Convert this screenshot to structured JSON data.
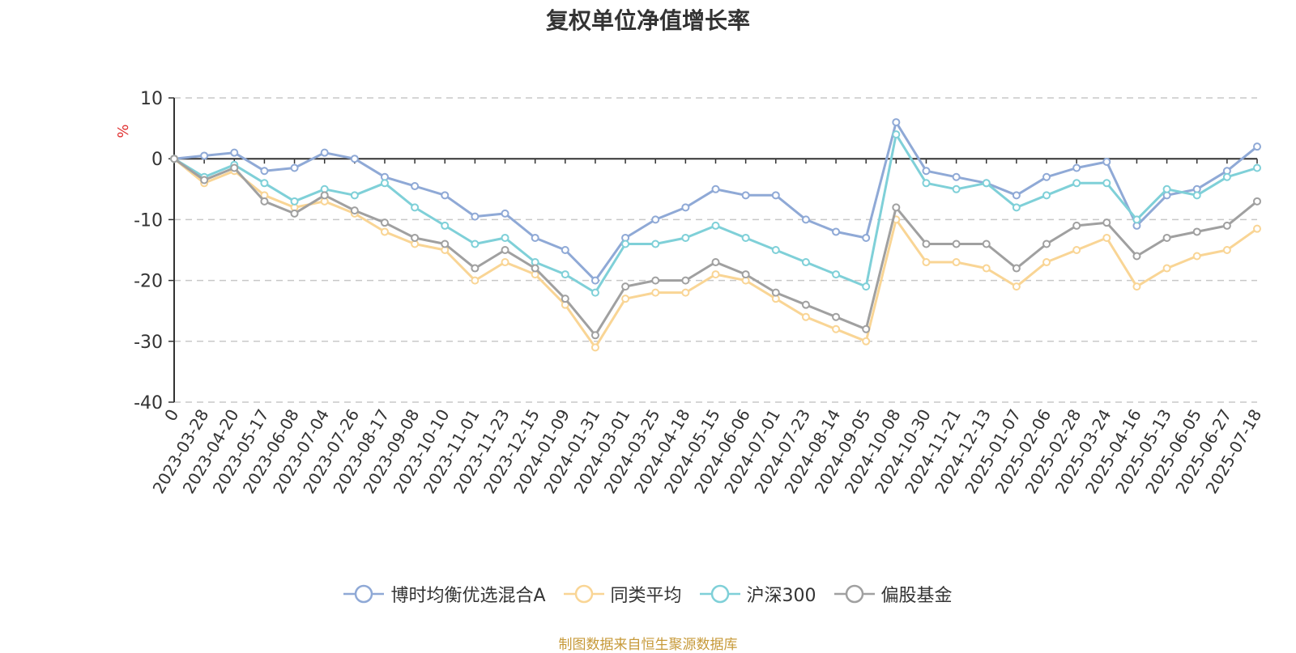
{
  "chart_data": {
    "type": "line",
    "title": "复权单位净值增长率",
    "ylabel": "%",
    "ylim": [
      -40,
      10
    ],
    "yticks": [
      "10",
      "0",
      "-10",
      "-20",
      "-30",
      "-40"
    ],
    "grid": true,
    "legend_position": "bottom",
    "x_ticks": [
      "0",
      "2023-03-28",
      "2023-04-20",
      "2023-05-17",
      "2023-06-08",
      "2023-07-04",
      "2023-07-26",
      "2023-08-17",
      "2023-09-08",
      "2023-10-10",
      "2023-11-01",
      "2023-11-23",
      "2023-12-15",
      "2024-01-09",
      "2024-01-31",
      "2024-03-01",
      "2024-03-25",
      "2024-04-18",
      "2024-05-15",
      "2024-06-06",
      "2024-07-01",
      "2024-07-23",
      "2024-08-14",
      "2024-09-05",
      "2024-10-08",
      "2024-10-30",
      "2024-11-21",
      "2024-12-13",
      "2025-01-07",
      "2025-02-06",
      "2025-02-28",
      "2025-03-24",
      "2025-04-16",
      "2025-05-13",
      "2025-06-05",
      "2025-06-27",
      "2025-07-18"
    ],
    "series": [
      {
        "name": "博时均衡优选混合A",
        "color": "#8fa9d6",
        "values": [
          0,
          0.5,
          1,
          -2,
          -1.5,
          1,
          0,
          -3,
          -4.5,
          -6,
          -9.5,
          -9,
          -13,
          -15,
          -20,
          -13,
          -10,
          -8,
          -5,
          -6,
          -6,
          -10,
          -12,
          -13,
          6,
          -2,
          -3,
          -4,
          -6,
          -3,
          -1.5,
          -0.5,
          -11,
          -6,
          -5,
          -2,
          2
        ]
      },
      {
        "name": "同类平均",
        "color": "#f9d595",
        "values": [
          0,
          -4,
          -2,
          -6,
          -8,
          -7,
          -9,
          -12,
          -14,
          -15,
          -20,
          -17,
          -19,
          -24,
          -31,
          -23,
          -22,
          -22,
          -19,
          -20,
          -23,
          -26,
          -28,
          -30,
          -10,
          -17,
          -17,
          -18,
          -21,
          -17,
          -15,
          -13,
          -21,
          -18,
          -16,
          -15,
          -11.5
        ]
      },
      {
        "name": "沪深300",
        "color": "#7fd0d8",
        "values": [
          0,
          -3,
          -1,
          -4,
          -7,
          -5,
          -6,
          -4,
          -8,
          -11,
          -14,
          -13,
          -17,
          -19,
          -22,
          -14,
          -14,
          -13,
          -11,
          -13,
          -15,
          -17,
          -19,
          -21,
          4,
          -4,
          -5,
          -4,
          -8,
          -6,
          -4,
          -4,
          -10,
          -5,
          -6,
          -3,
          -1.5
        ]
      },
      {
        "name": "偏股基金",
        "color": "#a0a0a0",
        "values": [
          0,
          -3.5,
          -1.5,
          -7,
          -9,
          -6,
          -8.5,
          -10.5,
          -13,
          -14,
          -18,
          -15,
          -18,
          -23,
          -29,
          -21,
          -20,
          -20,
          -17,
          -19,
          -22,
          -24,
          -26,
          -28,
          -8,
          -14,
          -14,
          -14,
          -18,
          -14,
          -11,
          -10.5,
          -16,
          -13,
          -12,
          -11,
          -7
        ]
      }
    ]
  },
  "source_text": "制图数据来自恒生聚源数据库"
}
